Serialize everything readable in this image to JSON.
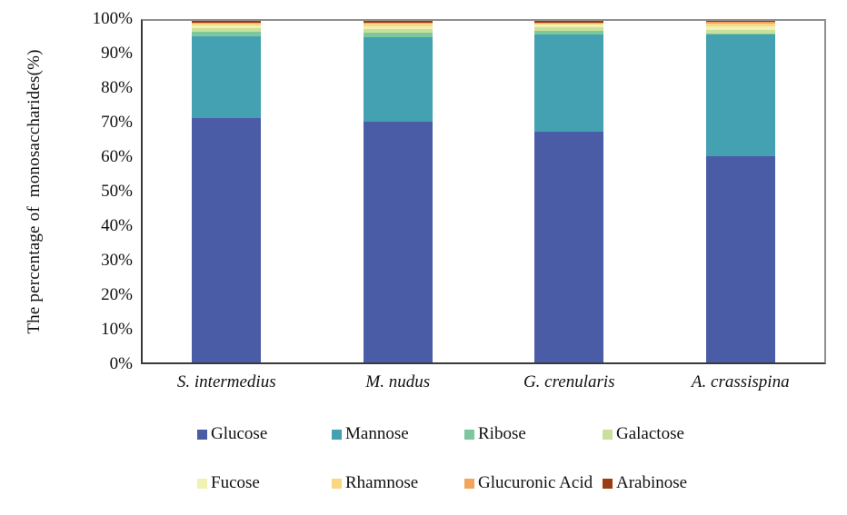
{
  "chart_data": {
    "type": "bar",
    "subtype": "stacked-percentage",
    "title": "",
    "xlabel": "",
    "ylabel": "The percentage of  monosaccharides(%)",
    "ylim": [
      0,
      100
    ],
    "ytick_labels": [
      "100%",
      "90%",
      "80%",
      "70%",
      "60%",
      "50%",
      "40%",
      "30%",
      "20%",
      "10%",
      "0%"
    ],
    "grid": "off",
    "legend_position": "bottom",
    "categories": [
      "S. intermedius",
      "M. nudus",
      "G. crenularis",
      "A. crassispina"
    ],
    "series": [
      {
        "name": "Glucose",
        "color": "#4A5CA5",
        "values": [
          71.5,
          70.5,
          67.5,
          60.5
        ]
      },
      {
        "name": "Mannose",
        "color": "#44A1B2",
        "values": [
          24.0,
          24.8,
          28.4,
          35.4
        ]
      },
      {
        "name": "Ribose",
        "color": "#7CC89D",
        "values": [
          1.4,
          1.3,
          1.2,
          0.5
        ]
      },
      {
        "name": "Galactose",
        "color": "#C8E09B",
        "values": [
          0.9,
          1.0,
          1.0,
          0.9
        ]
      },
      {
        "name": "Fucose",
        "color": "#EFF2B2",
        "values": [
          0.8,
          0.9,
          0.8,
          1.0
        ]
      },
      {
        "name": "Rhamnose",
        "color": "#F9D784",
        "values": [
          0.5,
          0.6,
          0.3,
          0.8
        ]
      },
      {
        "name": "Glucuronic Acid",
        "color": "#F3A45B",
        "values": [
          0.5,
          0.5,
          0.4,
          0.6
        ]
      },
      {
        "name": "Arabinose",
        "color": "#9A3D12",
        "values": [
          0.4,
          0.4,
          0.4,
          0.3
        ]
      }
    ],
    "axis_colors": {
      "left_bottom_axis": "#3a3a3a",
      "top_right_frame": "#8f8f8f",
      "text": "#111111"
    }
  }
}
